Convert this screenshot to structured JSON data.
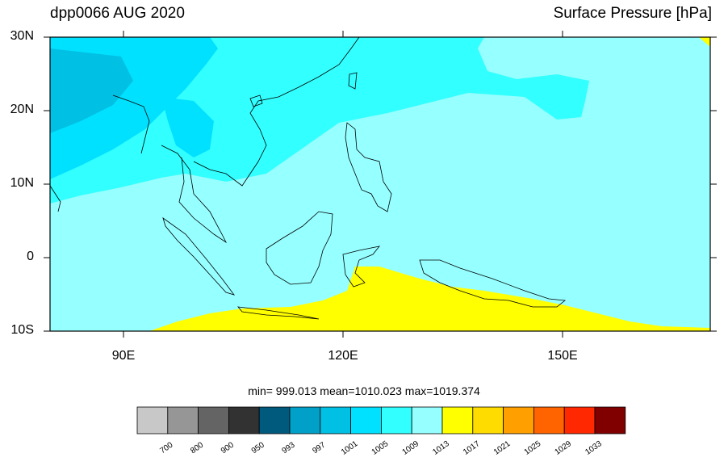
{
  "header": {
    "left_title": "dpp0066 AUG 2020",
    "right_title": "Surface Pressure [hPa]"
  },
  "axes": {
    "lat_ticks": [
      "30N",
      "20N",
      "10N",
      "0",
      "10S"
    ],
    "lon_ticks": [
      "90E",
      "120E",
      "150E"
    ]
  },
  "stats_text": "min= 999.013  mean=1010.023  max=1019.374",
  "colorbar": {
    "colors": [
      "#c8c8c8",
      "#969696",
      "#646464",
      "#323232",
      "#005a7d",
      "#00a0c8",
      "#00c0e4",
      "#00e1ff",
      "#32ffff",
      "#96ffff",
      "#ffff00",
      "#ffdc00",
      "#ffa000",
      "#ff6400",
      "#ff2800",
      "#800000"
    ],
    "labels": [
      "700",
      "800",
      "900",
      "950",
      "993",
      "997",
      "1001",
      "1005",
      "1009",
      "1013",
      "1017",
      "1021",
      "1025",
      "1029",
      "1033"
    ]
  },
  "colors": {
    "ocean_high": "#96ffff",
    "land_mid": "#32ffff",
    "land_low": "#00e1ff",
    "land_lower": "#00c0e4",
    "high_pressure": "#ffff00"
  }
}
